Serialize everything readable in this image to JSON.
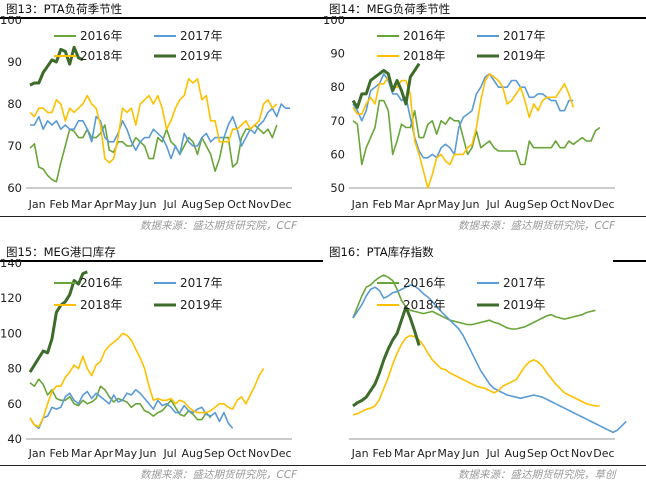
{
  "source_label": "数据来源：盛达期货研究院，CCF",
  "colors": {
    "s2016": "#6aa53a",
    "s2017": "#5b9bd5",
    "s2018": "#ffc000",
    "s2019": "#3d6b2a"
  },
  "chart_data": [
    {
      "title": "图13：PTA负荷季节性",
      "type": "line",
      "ylim": [
        60,
        100
      ],
      "yticks": [
        60,
        70,
        80,
        90,
        100
      ],
      "xlabels": [
        "Jan",
        "Feb",
        "Mar",
        "Apr",
        "May",
        "Jun",
        "Jul",
        "Aug",
        "Sep",
        "Oct",
        "Nov",
        "Dec"
      ],
      "legend_location": "top",
      "grid": false,
      "source": "数据来源：盛达期货研究院，CCF",
      "series": [
        {
          "name": "2016年",
          "values": [
            69.5,
            70.5,
            65,
            64.5,
            63,
            62,
            61.5,
            66,
            70,
            74,
            73.5,
            72,
            72,
            74,
            72,
            72,
            73,
            75,
            69,
            68.5,
            71,
            71,
            70,
            70,
            72,
            71,
            70,
            67,
            67,
            72,
            71,
            74,
            71,
            70,
            68,
            70,
            72,
            71,
            68,
            72,
            70,
            68,
            64,
            67,
            72,
            72,
            65,
            66,
            72,
            74,
            74,
            75,
            74,
            73,
            74,
            72,
            75
          ]
        },
        {
          "name": "2017年",
          "values": [
            75,
            75,
            77,
            74,
            76,
            75,
            76,
            74,
            75,
            74,
            74,
            76,
            76,
            74,
            71,
            77,
            76,
            72,
            71,
            71,
            73,
            76,
            74,
            71,
            69,
            71,
            72,
            72,
            74,
            73,
            72,
            70,
            67,
            70,
            68,
            73,
            71,
            70,
            70,
            72,
            73,
            71,
            72,
            72,
            72,
            75,
            77,
            74,
            70,
            72,
            74,
            73,
            75,
            76,
            78,
            79,
            77,
            80,
            79,
            79
          ]
        },
        {
          "name": "2018年",
          "values": [
            78,
            77,
            79,
            79,
            78,
            78,
            81,
            80,
            76,
            79,
            78,
            79,
            80,
            82,
            80,
            79,
            75,
            67,
            66,
            67,
            72,
            79,
            78,
            79,
            75,
            80,
            81,
            82,
            80,
            82,
            79,
            74,
            76,
            79,
            81,
            82,
            86,
            85,
            86,
            81,
            82,
            76,
            76,
            71,
            71,
            71,
            74,
            74,
            75,
            76,
            74,
            75,
            76,
            80,
            81,
            79,
            80
          ]
        },
        {
          "name": "2019年",
          "values": [
            84.5,
            85,
            85,
            87.5,
            89,
            90.5,
            90,
            93,
            92.5,
            89.5,
            93.5,
            91,
            90.5
          ]
        }
      ]
    },
    {
      "title": "图14：MEG负荷季节性",
      "type": "line",
      "ylim": [
        50,
        100
      ],
      "yticks": [
        50,
        60,
        70,
        80,
        90,
        100
      ],
      "xlabels": [
        "Jan",
        "Feb",
        "Mar",
        "Apr",
        "May",
        "Jun",
        "Jul",
        "Aug",
        "Sep",
        "Oct",
        "Nov",
        "Dec"
      ],
      "legend_location": "top",
      "grid": false,
      "source": "数据来源：盛达期货研究院，CCF",
      "series": [
        {
          "name": "2016年",
          "values": [
            70,
            69,
            57,
            62,
            65,
            68,
            76,
            76,
            73,
            60,
            64,
            69,
            68,
            68,
            73,
            65,
            65,
            69,
            70,
            66,
            70,
            69,
            71,
            70,
            70,
            65,
            60,
            62,
            67,
            62,
            63,
            64,
            62,
            61,
            61,
            61,
            61,
            61,
            57,
            57,
            64,
            62,
            62,
            62,
            62,
            62,
            64,
            62,
            62,
            64,
            63,
            64,
            65,
            64,
            64,
            67,
            68
          ]
        },
        {
          "name": "2017年",
          "values": [
            75,
            73,
            70,
            73,
            79,
            80,
            81,
            84,
            82,
            78,
            78,
            76,
            77,
            71,
            65,
            61,
            59,
            59,
            60,
            59,
            62,
            63,
            62,
            60,
            68,
            71,
            72,
            73,
            78,
            80,
            83,
            84,
            82,
            80,
            80,
            80,
            82,
            82,
            80,
            80,
            77,
            77,
            78,
            78,
            77,
            76,
            76,
            73,
            73,
            76,
            76
          ]
        },
        {
          "name": "2018年",
          "values": [
            74,
            72,
            72,
            75,
            77,
            75,
            81,
            81,
            83,
            80,
            80,
            82,
            82,
            78,
            64,
            60,
            55,
            50,
            54,
            59,
            60,
            58,
            57,
            60,
            60,
            60,
            62,
            63,
            68,
            76,
            82,
            84,
            83,
            82,
            80,
            75,
            76,
            78,
            80,
            76,
            71,
            75,
            73,
            76,
            77,
            77,
            77,
            79,
            81,
            78,
            74
          ]
        },
        {
          "name": "2019年",
          "values": [
            76,
            74,
            78,
            78,
            82,
            83,
            84,
            85,
            84,
            79,
            82,
            79,
            75,
            83,
            85,
            87
          ]
        }
      ]
    },
    {
      "title": "图15：MEG港口库存",
      "type": "line",
      "ylim": [
        40,
        140
      ],
      "yticks": [
        40,
        60,
        80,
        100,
        120,
        140
      ],
      "xlabels": [
        "Jan",
        "Feb",
        "Mar",
        "Apr",
        "May",
        "Jun",
        "Jul",
        "Aug",
        "Sep",
        "Oct",
        "Nov",
        "Dec"
      ],
      "legend_location": "top",
      "grid": false,
      "source": "数据来源：盛达期货研究院，CCF",
      "series": [
        {
          "name": "2016年",
          "values": [
            72,
            70,
            74,
            71,
            65,
            68,
            63,
            62,
            62,
            64,
            60,
            59,
            62,
            60,
            61,
            63,
            70,
            68,
            64,
            61,
            63,
            62,
            61,
            58,
            60,
            60,
            56,
            55,
            53,
            55,
            56,
            59,
            62,
            58,
            54,
            53,
            56,
            54,
            51,
            51,
            55,
            52
          ]
        },
        {
          "name": "2017年",
          "values": [
            52,
            48,
            46,
            52,
            53,
            58,
            57,
            58,
            64,
            66,
            62,
            60,
            65,
            67,
            63,
            66,
            64,
            62,
            60,
            65,
            61,
            62,
            66,
            65,
            68,
            66,
            63,
            60,
            57,
            62,
            59,
            60,
            58,
            55,
            55,
            59,
            56,
            55,
            57,
            58,
            54,
            53,
            55,
            50,
            55,
            49,
            46
          ]
        },
        {
          "name": "2018年",
          "values": [
            52,
            48,
            47,
            52,
            60,
            67,
            70,
            70,
            75,
            78,
            82,
            80,
            87,
            80,
            76,
            82,
            84,
            90,
            93,
            95,
            97,
            100,
            99,
            96,
            91,
            86,
            80,
            70,
            62,
            63,
            62,
            62,
            63,
            60,
            62,
            61,
            58,
            56,
            55,
            55,
            55,
            56,
            58,
            60,
            60,
            58,
            57,
            62,
            64,
            60,
            65,
            70,
            76,
            80
          ]
        },
        {
          "name": "2019年",
          "values": [
            78,
            82,
            86,
            90,
            89,
            97,
            112,
            116,
            118,
            122,
            130,
            128,
            134,
            135
          ]
        }
      ]
    },
    {
      "title": "图16：PTA库存指数",
      "type": "line",
      "ylim": [
        null,
        null
      ],
      "yticks": [],
      "xlabels": [
        "Jan",
        "Feb",
        "Mar",
        "Apr",
        "May",
        "Jun",
        "Jul",
        "Aug",
        "Sep",
        "Oct",
        "Nov",
        "Dec"
      ],
      "legend_location": "top",
      "grid": false,
      "source": "数据来源：盛达期货研究院，草创",
      "series": [
        {
          "name": "2016年",
          "values": [
            150,
            160,
            170,
            178,
            180,
            184,
            187,
            189,
            187,
            184,
            176,
            166,
            160,
            157,
            156,
            155,
            154,
            155,
            156,
            154,
            152,
            150,
            148,
            147,
            146,
            145,
            144,
            144,
            145,
            146,
            147,
            148,
            146,
            145,
            143,
            141,
            140,
            140,
            141,
            142,
            144,
            146,
            148,
            150,
            152,
            153,
            151,
            150,
            149,
            150,
            151,
            152,
            153,
            155,
            156,
            157
          ]
        },
        {
          "name": "2017年",
          "values": [
            150,
            156,
            162,
            170,
            176,
            178,
            175,
            168,
            170,
            173,
            174,
            176,
            178,
            180,
            179,
            176,
            172,
            169,
            165,
            160,
            156,
            152,
            148,
            144,
            140,
            134,
            126,
            118,
            110,
            102,
            96,
            90,
            86,
            84,
            82,
            80,
            79,
            78,
            77,
            78,
            79,
            80,
            79,
            78,
            76,
            74,
            72,
            70,
            68,
            66,
            64,
            62,
            60,
            58,
            56,
            54,
            52,
            50,
            48,
            46,
            48,
            52,
            56
          ]
        },
        {
          "name": "2018年",
          "values": [
            62,
            63,
            65,
            67,
            68,
            70,
            76,
            86,
            96,
            108,
            118,
            126,
            132,
            134,
            133,
            130,
            125,
            118,
            112,
            108,
            104,
            103,
            100,
            98,
            96,
            94,
            92,
            90,
            88,
            87,
            86,
            84,
            82,
            84,
            88,
            90,
            92,
            94,
            100,
            106,
            110,
            112,
            110,
            106,
            100,
            95,
            90,
            86,
            82,
            80,
            78,
            76,
            74,
            72,
            71,
            70,
            70
          ]
        },
        {
          "name": "2019年",
          "values": [
            70,
            73,
            75,
            78,
            84,
            90,
            100,
            112,
            122,
            130,
            136,
            148,
            160,
            150,
            138,
            125
          ]
        }
      ]
    }
  ]
}
